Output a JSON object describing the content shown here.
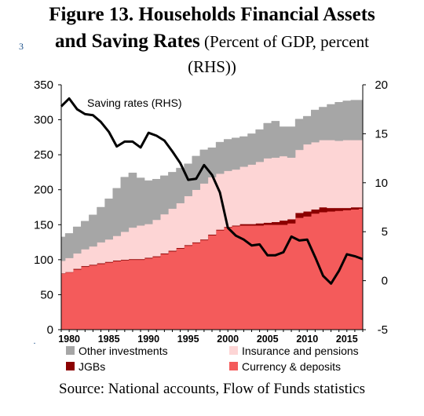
{
  "title": {
    "line1": "Figure 13. Households Financial Assets",
    "line2_bold": "and Saving Rates",
    "line2_rest": " (Percent of GDP, percent",
    "line3": "(RHS))"
  },
  "source": "Source: National accounts, Flow of Funds statistics",
  "colors": {
    "other_investments": "#a6a6a6",
    "insurance_and_pensions": "#fdd5d5",
    "jgbs": "#8b0000",
    "currency_and_deposits": "#f45b5b",
    "saving_rate_line": "#000000"
  },
  "chart_data": {
    "type": "area",
    "x": [
      1979,
      1980,
      1981,
      1982,
      1983,
      1984,
      1985,
      1986,
      1987,
      1988,
      1989,
      1990,
      1991,
      1992,
      1993,
      1994,
      1995,
      1996,
      1997,
      1998,
      1999,
      2000,
      2001,
      2002,
      2003,
      2004,
      2005,
      2006,
      2007,
      2008,
      2009,
      2010,
      2011,
      2012,
      2013,
      2014,
      2015,
      2016,
      2017
    ],
    "x_ticks": [
      1980,
      1985,
      1990,
      1995,
      2000,
      2005,
      2010,
      2015
    ],
    "left_axis": {
      "ylim": [
        0,
        350
      ],
      "ticks": [
        0,
        50,
        100,
        150,
        200,
        250,
        300,
        350
      ]
    },
    "right_axis": {
      "ylim": [
        -5,
        20
      ],
      "ticks": [
        -5,
        0,
        5,
        10,
        15,
        20
      ]
    },
    "grid": false,
    "legend_position": "bottom",
    "stacked_series": [
      {
        "name": "Currency & deposits",
        "axis": "left",
        "values": [
          80,
          82,
          86,
          90,
          92,
          94,
          96,
          98,
          99,
          100,
          100,
          102,
          104,
          108,
          112,
          116,
          120,
          124,
          128,
          135,
          142,
          146,
          148,
          149,
          149,
          149,
          150,
          150,
          150,
          152,
          160,
          162,
          166,
          168,
          169,
          170,
          171,
          172,
          173
        ]
      },
      {
        "name": "JGBs",
        "axis": "left",
        "values": [
          0.5,
          0.5,
          1,
          1,
          1,
          1,
          1,
          1,
          1,
          1,
          1,
          1,
          1,
          1,
          1,
          1,
          1,
          1,
          1,
          1,
          1,
          1,
          1,
          2,
          2,
          3,
          3,
          4,
          6,
          6,
          7,
          7,
          6,
          7,
          5,
          4,
          3,
          3,
          2
        ]
      },
      {
        "name": "Insurance and pensions",
        "axis": "left",
        "values": [
          18,
          20,
          22,
          24,
          26,
          30,
          32,
          35,
          40,
          45,
          48,
          48,
          52,
          56,
          60,
          64,
          70,
          75,
          80,
          82,
          80,
          80,
          80,
          82,
          85,
          88,
          92,
          92,
          92,
          88,
          90,
          96,
          96,
          96,
          97,
          96,
          97,
          96,
          96
        ]
      },
      {
        "name": "Other investments",
        "axis": "left",
        "values": [
          34,
          35,
          38,
          40,
          45,
          50,
          58,
          68,
          78,
          78,
          68,
          62,
          58,
          55,
          52,
          50,
          46,
          48,
          48,
          42,
          45,
          45,
          45,
          43,
          44,
          46,
          50,
          52,
          42,
          44,
          44,
          40,
          46,
          47,
          51,
          55,
          56,
          57,
          57
        ]
      }
    ],
    "line_series": [
      {
        "name": "Saving rates (RHS)",
        "axis": "right",
        "values": [
          17.8,
          18.6,
          17.5,
          17.0,
          16.9,
          16.2,
          15.2,
          13.7,
          14.2,
          14.2,
          13.6,
          15.1,
          14.8,
          14.3,
          13.2,
          12.0,
          10.3,
          10.4,
          11.8,
          10.8,
          9.0,
          5.4,
          4.6,
          4.2,
          3.6,
          3.7,
          2.6,
          2.6,
          2.9,
          4.5,
          4.1,
          4.2,
          2.4,
          0.5,
          -0.3,
          1.0,
          2.7,
          2.5,
          2.2
        ]
      }
    ],
    "annotations": [
      {
        "text": "Saving rates (RHS)"
      }
    ],
    "legend": [
      {
        "label": "Other investments",
        "color_key": "other_investments"
      },
      {
        "label": "Insurance and pensions",
        "color_key": "insurance_and_pensions"
      },
      {
        "label": "JGBs",
        "color_key": "jgbs"
      },
      {
        "label": "Currency & deposits",
        "color_key": "currency_and_deposits"
      }
    ]
  }
}
